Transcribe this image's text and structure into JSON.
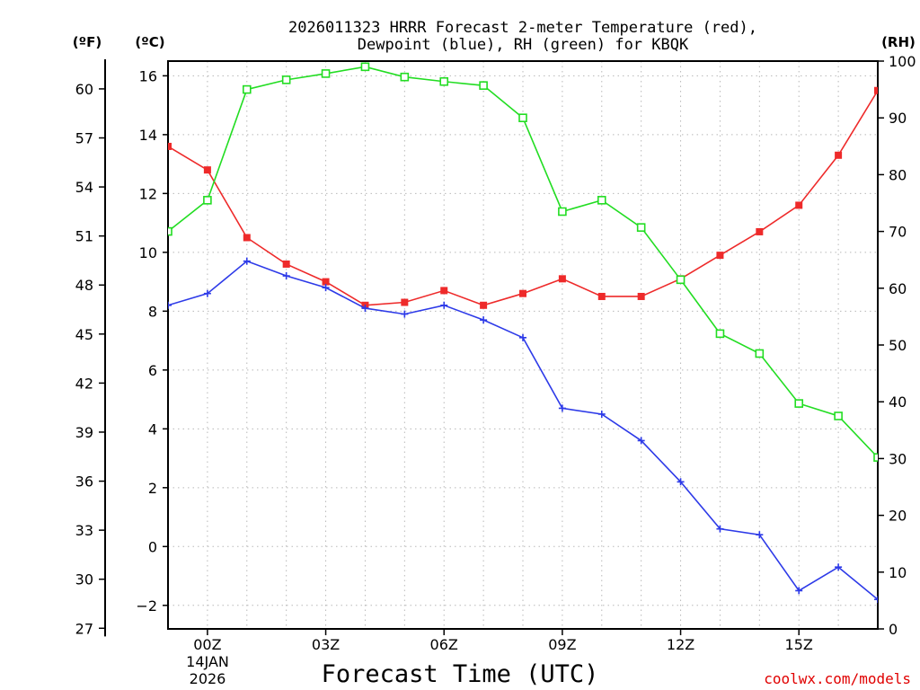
{
  "chart_data": {
    "type": "line",
    "title_lines": [
      "2026011323 HRRR Forecast 2-meter Temperature (red),",
      "Dewpoint (blue), RH (green) for KBQK"
    ],
    "xlabel": "Forecast Time (UTC)",
    "date_label": [
      "14JAN",
      "2026"
    ],
    "credit": "coolwx.com/models",
    "x": [
      -1,
      0,
      1,
      2,
      3,
      4,
      5,
      6,
      7,
      8,
      9,
      10,
      11,
      12,
      13,
      14,
      15,
      16,
      17
    ],
    "xlim": [
      -1,
      17
    ],
    "x_ticks": [
      0,
      3,
      6,
      9,
      12,
      15
    ],
    "x_tick_labels": [
      "00Z",
      "03Z",
      "06Z",
      "09Z",
      "12Z",
      "15Z"
    ],
    "left_axis": {
      "unit_label": "(ºC)",
      "ylim": [
        -2.8,
        16.5
      ],
      "ticks": [
        -2,
        0,
        2,
        4,
        6,
        8,
        10,
        12,
        14,
        16
      ],
      "tick_labels": [
        "−2",
        "0",
        "2",
        "4",
        "6",
        "8",
        "10",
        "12",
        "14",
        "16"
      ]
    },
    "outer_axis": {
      "unit_label": "(ºF)",
      "ticks": [
        27,
        30,
        33,
        36,
        39,
        42,
        45,
        48,
        51,
        54,
        57,
        60
      ],
      "tick_labels": [
        "27",
        "30",
        "33",
        "36",
        "39",
        "42",
        "45",
        "48",
        "51",
        "54",
        "57",
        "60"
      ]
    },
    "right_axis": {
      "unit_label": "(RH)",
      "ylim": [
        0,
        100
      ],
      "ticks": [
        0,
        10,
        20,
        30,
        40,
        50,
        60,
        70,
        80,
        90,
        100
      ],
      "tick_labels": [
        "0",
        "10",
        "20",
        "30",
        "40",
        "50",
        "60",
        "70",
        "80",
        "90",
        "100"
      ]
    },
    "series": [
      {
        "name": "Temperature",
        "unit": "°C",
        "axis": "left",
        "color": "#ee2a2a",
        "marker": "filled-square",
        "values": [
          13.6,
          12.8,
          10.5,
          9.6,
          9.0,
          8.2,
          8.3,
          8.7,
          8.2,
          8.6,
          9.1,
          8.5,
          8.5,
          9.1,
          9.9,
          10.7,
          11.6,
          13.3,
          15.5
        ]
      },
      {
        "name": "Dewpoint",
        "unit": "°C",
        "axis": "left",
        "color": "#2d3ae8",
        "marker": "plus",
        "values": [
          8.2,
          8.6,
          9.7,
          9.2,
          8.8,
          8.1,
          7.9,
          8.2,
          7.7,
          7.1,
          4.7,
          4.5,
          3.6,
          2.2,
          0.6,
          0.4,
          -1.5,
          -0.7,
          -1.8
        ]
      },
      {
        "name": "RH",
        "unit": "%",
        "axis": "right",
        "color": "#22dd22",
        "marker": "open-square",
        "values": [
          70,
          75.5,
          95,
          96.7,
          97.8,
          99,
          97.2,
          96.4,
          95.7,
          90,
          73.5,
          75.5,
          70.7,
          61.5,
          52,
          48.5,
          39.7,
          37.5,
          30.2
        ]
      }
    ]
  }
}
